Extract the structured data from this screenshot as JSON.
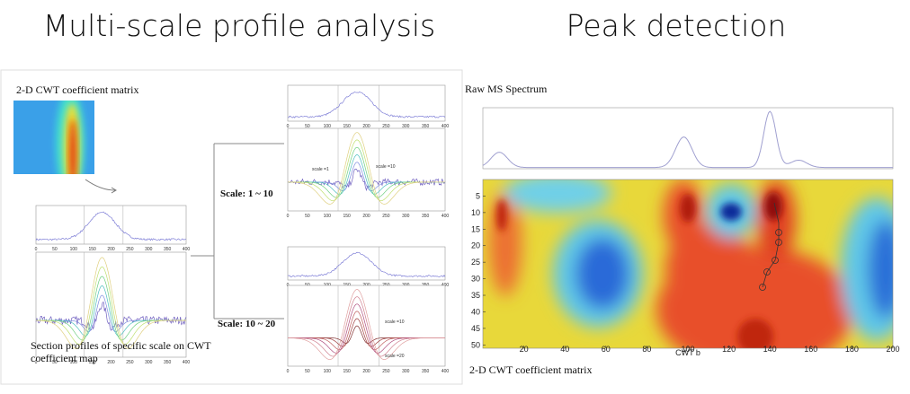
{
  "titles": {
    "left": "Multi-scale profile analysis",
    "right": "Peak detection"
  },
  "left_panel": {
    "matrix_title": "2-D CWT coefficient matrix",
    "caption": "Section profiles of specific scale on CWT coefficient map",
    "scale_labels": [
      "Scale: 1 ~ 10",
      "Scale: 10 ~ 20"
    ],
    "curve_labels": [
      "scale =1",
      "scale =10",
      "scale =10",
      "scale =20"
    ],
    "xticks": [
      0,
      50,
      100,
      150,
      200,
      250,
      300,
      350,
      400
    ]
  },
  "right_panel": {
    "spectrum_title": "Raw MS Spectrum",
    "matrix_title": "2-D CWT coefficient matrix",
    "heatmap": {
      "xlabel": "CWT b",
      "xlim": [
        0,
        200
      ],
      "ylim": [
        0,
        51
      ],
      "xticks": [
        20,
        40,
        60,
        80,
        100,
        120,
        140,
        160,
        180,
        200
      ],
      "yticks": [
        5,
        10,
        15,
        20,
        25,
        30,
        35,
        40,
        45,
        50
      ]
    }
  }
}
